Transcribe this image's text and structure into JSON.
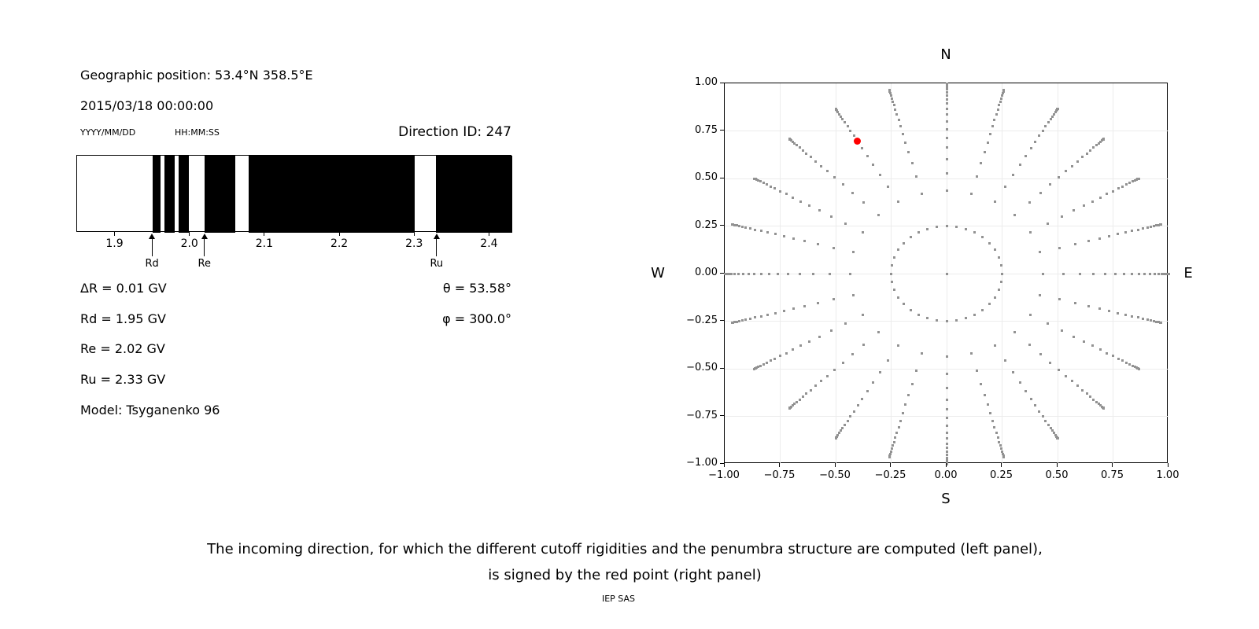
{
  "info_panel": {
    "geographic_position": "Geographic position: 53.4°N 358.5°E",
    "datetime": "2015/03/18 00:00:00",
    "date_format": "YYYY/MM/DD",
    "time_format": "HH:MM:SS",
    "direction_id": "Direction ID: 247",
    "results": {
      "delta_r": "ΔR = 0.01 GV",
      "rd": "Rd = 1.95 GV",
      "re": "Re = 2.02 GV",
      "ru": "Ru = 2.33 GV",
      "model": "Model: Tsyganenko 96",
      "theta": "θ = 53.58°",
      "phi": "φ = 300.0°"
    }
  },
  "caption": {
    "line1": "The incoming direction, for which the different cutoff rigidities and the penumbra structure are computed (left panel),",
    "line2": "is signed by the red point (right panel)",
    "credit": "IEP SAS"
  },
  "chart_data": [
    {
      "type": "bar",
      "description": "Penumbra structure: black bands are forbidden rigidity intervals (GV)",
      "xlim": [
        1.849,
        2.43
      ],
      "xticks": [
        1.9,
        2.0,
        2.1,
        2.2,
        2.3,
        2.4
      ],
      "xtick_labels": [
        "1.9",
        "2.0",
        "2.1",
        "2.2",
        "2.3",
        "2.4"
      ],
      "forbidden_bands_gv": [
        [
          1.95,
          1.96
        ],
        [
          1.966,
          1.979
        ],
        [
          1.985,
          1.998
        ],
        [
          2.019,
          2.06
        ],
        [
          2.078,
          2.3
        ],
        [
          2.328,
          2.43
        ]
      ],
      "arrows": [
        {
          "label": "Rd",
          "value_gv": 1.95
        },
        {
          "label": "Re",
          "value_gv": 2.02
        },
        {
          "label": "Ru",
          "value_gv": 2.33
        }
      ],
      "bar_color": "#000000",
      "background": "#ffffff"
    },
    {
      "type": "scatter",
      "description": "Grid of incoming directions; red point marks direction ID 247",
      "xlim": [
        -1,
        1
      ],
      "ylim": [
        -1,
        1
      ],
      "xticks": [
        -1,
        -0.75,
        -0.5,
        -0.25,
        0,
        0.25,
        0.5,
        0.75,
        1
      ],
      "yticks": [
        1,
        0.75,
        0.5,
        0.25,
        0,
        -0.25,
        -0.5,
        -0.75,
        -1
      ],
      "xtick_labels": [
        "−1.00",
        "−0.75",
        "−0.50",
        "−0.25",
        "0.00",
        "0.25",
        "0.50",
        "0.75",
        "1.00"
      ],
      "ytick_labels": [
        "1.00",
        "0.75",
        "0.50",
        "0.25",
        "0.00",
        "−0.25",
        "−0.50",
        "−0.75",
        "−1.00"
      ],
      "compass": {
        "north": "N",
        "south": "S",
        "west": "W",
        "east": "E"
      },
      "grid": true,
      "grid_color": "#ececec",
      "dot_color": "#929292",
      "center_dot": {
        "x": 0,
        "y": 0
      },
      "inner_ring": {
        "radius": 0.25,
        "dot_count": 36
      },
      "spokes": {
        "azimuth_start_deg": 0,
        "azimuth_step_deg": 15,
        "azimuth_count": 24,
        "cos_zenith_steps": [
          0.9,
          0.85,
          0.8,
          0.75,
          0.7,
          0.65,
          0.6,
          0.55,
          0.5,
          0.45,
          0.4,
          0.35,
          0.3,
          0.25,
          0.2,
          0.15,
          0.1,
          0.05,
          0
        ]
      },
      "red_point": {
        "x": -0.403,
        "y": 0.698,
        "azimuth_deg": 330,
        "zenith_deg": 53.58,
        "replaces_cos_zenith": 0.6,
        "color": "#ff0000"
      }
    }
  ]
}
